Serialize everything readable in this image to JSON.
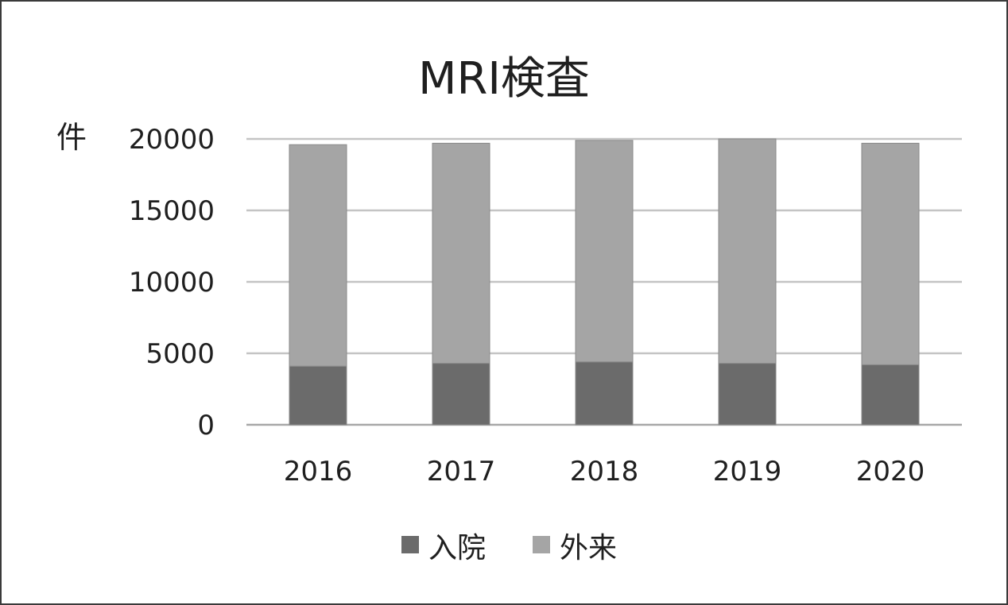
{
  "chart_data": {
    "type": "bar",
    "stacked": true,
    "title": "MRI検査",
    "xlabel": "",
    "ylabel": "件",
    "categories": [
      "2016",
      "2017",
      "2018",
      "2019",
      "2020"
    ],
    "series": [
      {
        "name": "入院",
        "color": "#6b6b6b",
        "values": [
          4100,
          4300,
          4400,
          4300,
          4200
        ]
      },
      {
        "name": "外来",
        "color": "#a5a5a5",
        "values": [
          15500,
          15400,
          15500,
          15700,
          15500
        ]
      }
    ],
    "ylim": [
      0,
      20000
    ],
    "yticks": [
      0,
      5000,
      10000,
      15000,
      20000
    ],
    "grid": true,
    "legend": "bottom"
  }
}
